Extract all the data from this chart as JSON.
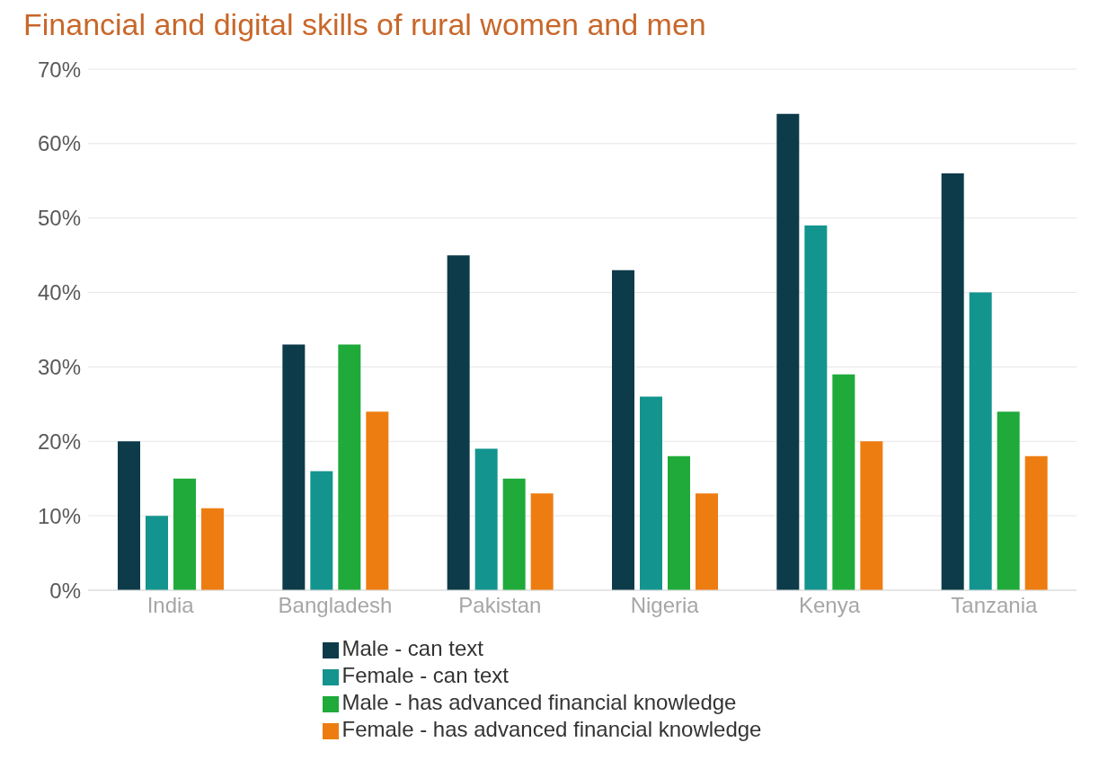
{
  "chart_data": {
    "type": "bar",
    "title": "Financial and digital skills of rural women and men",
    "categories": [
      "India",
      "Bangladesh",
      "Pakistan",
      "Nigeria",
      "Kenya",
      "Tanzania"
    ],
    "series": [
      {
        "name": "Male - can text",
        "color": "#0d3b4a",
        "values": [
          20,
          33,
          45,
          43,
          64,
          56
        ]
      },
      {
        "name": "Female - can text",
        "color": "#13948e",
        "values": [
          10,
          16,
          19,
          26,
          49,
          40
        ]
      },
      {
        "name": "Male - has advanced financial knowledge",
        "color": "#1faa3a",
        "values": [
          15,
          33,
          15,
          18,
          29,
          24
        ]
      },
      {
        "name": "Female - has advanced financial knowledge",
        "color": "#ee7d11",
        "values": [
          11,
          24,
          13,
          13,
          20,
          18
        ]
      }
    ],
    "ylim": [
      0,
      70
    ],
    "yticks": [
      {
        "value": 0,
        "label": "0%"
      },
      {
        "value": 10,
        "label": "10%"
      },
      {
        "value": 20,
        "label": "20%"
      },
      {
        "value": 30,
        "label": "30%"
      },
      {
        "value": 40,
        "label": "40%"
      },
      {
        "value": 50,
        "label": "50%"
      },
      {
        "value": 60,
        "label": "60%"
      },
      {
        "value": 70,
        "label": "70%"
      }
    ],
    "grid": "y",
    "legend": "bottom"
  }
}
